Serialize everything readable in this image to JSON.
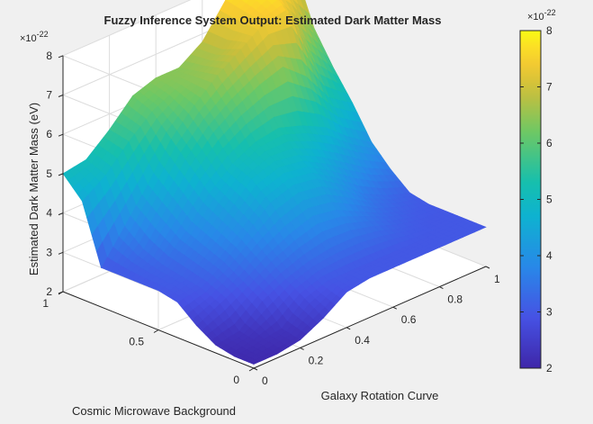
{
  "chart_data": {
    "type": "surface3d",
    "title": "Fuzzy Inference System Output: Estimated Dark Matter Mass",
    "xlabel": "Galaxy Rotation Curve",
    "ylabel": "Cosmic Microwave Background",
    "zlabel": "Estimated Dark Matter Mass (eV)",
    "xlim": [
      0,
      1
    ],
    "ylim": [
      0,
      1
    ],
    "zlim": [
      2,
      8
    ],
    "x_ticks": [
      "0",
      "0.2",
      "0.4",
      "0.6",
      "0.8",
      "1"
    ],
    "y_ticks": [
      "0",
      "0.5",
      "1"
    ],
    "z_ticks": [
      "2",
      "3",
      "4",
      "5",
      "6",
      "7",
      "8"
    ],
    "z_exponent_label": "×10",
    "z_exponent_power": "-22",
    "colorbar": {
      "colormap": "parula",
      "range": [
        2,
        8
      ],
      "ticks": [
        "2",
        "3",
        "4",
        "5",
        "6",
        "7",
        "8"
      ],
      "exponent_label": "×10",
      "exponent_power": "-22"
    },
    "grid": true,
    "surface_samples": {
      "x": [
        0,
        0.1,
        0.2,
        0.3,
        0.4,
        0.5,
        0.6,
        0.7,
        0.8,
        0.9,
        1
      ],
      "y": [
        0,
        0.1,
        0.2,
        0.3,
        0.4,
        0.5,
        0.6,
        0.7,
        0.8,
        0.9,
        1
      ],
      "z_rows_by_y": [
        [
          2.1,
          2.1,
          2.2,
          2.5,
          2.9,
          3.0,
          3.0,
          3.0,
          3.0,
          3.0,
          3.0
        ],
        [
          2.1,
          2.2,
          2.3,
          2.8,
          3.0,
          3.0,
          3.0,
          3.0,
          3.0,
          3.0,
          3.0
        ],
        [
          2.2,
          2.3,
          2.8,
          3.1,
          3.3,
          3.4,
          3.4,
          3.3,
          3.1,
          3.0,
          3.0
        ],
        [
          2.5,
          2.8,
          3.1,
          3.5,
          3.8,
          4.0,
          3.9,
          3.6,
          3.3,
          3.1,
          3.0
        ],
        [
          2.9,
          3.0,
          3.4,
          3.9,
          4.4,
          4.6,
          4.5,
          4.1,
          3.6,
          3.3,
          3.1
        ],
        [
          3.0,
          3.1,
          3.6,
          4.2,
          4.8,
          5.0,
          4.9,
          4.6,
          4.2,
          3.8,
          3.5
        ],
        [
          3.0,
          3.2,
          3.8,
          4.5,
          5.0,
          5.3,
          5.4,
          5.2,
          4.9,
          4.4,
          4.0
        ],
        [
          3.0,
          3.4,
          4.2,
          5.0,
          5.6,
          6.0,
          6.3,
          6.5,
          6.0,
          5.2,
          4.8
        ],
        [
          3.0,
          3.8,
          4.6,
          5.5,
          6.1,
          6.6,
          7.0,
          7.4,
          7.5,
          6.2,
          5.5
        ],
        [
          4.5,
          4.9,
          5.5,
          6.0,
          6.3,
          6.5,
          6.8,
          7.5,
          7.8,
          7.2,
          6.3
        ],
        [
          5.0,
          5.1,
          5.6,
          6.2,
          6.4,
          6.4,
          6.8,
          7.6,
          8.0,
          8.0,
          7.6
        ]
      ]
    }
  }
}
